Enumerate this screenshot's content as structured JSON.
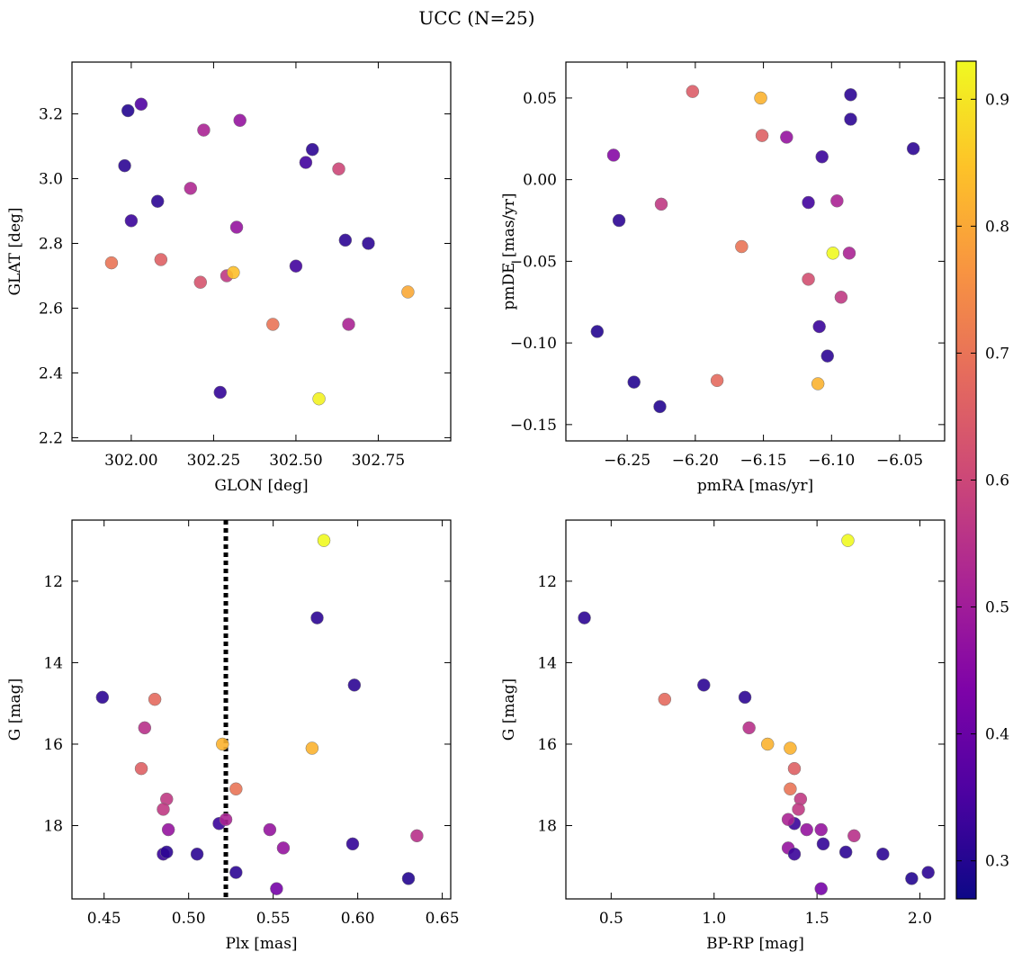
{
  "title": "UCC (N=25)",
  "colorbar": {
    "ticks": [
      0.3,
      0.4,
      0.5,
      0.6,
      0.7,
      0.8,
      0.9
    ],
    "range": [
      0.27,
      0.93
    ],
    "colormap": "plasma"
  },
  "chart_data": [
    {
      "type": "scatter",
      "name": "sky",
      "xlabel": "GLON [deg]",
      "ylabel": "GLAT [deg]",
      "xlim": [
        301.82,
        302.97
      ],
      "ylim": [
        2.19,
        3.36
      ],
      "xticks": [
        "302.00",
        "302.25",
        "302.50",
        "302.75"
      ],
      "yticks": [
        "2.2",
        "2.4",
        "2.6",
        "2.8",
        "3.0",
        "3.2"
      ],
      "points": [
        {
          "x": 301.99,
          "y": 3.21,
          "c": 0.3
        },
        {
          "x": 302.03,
          "y": 3.23,
          "c": 0.36
        },
        {
          "x": 301.98,
          "y": 3.04,
          "c": 0.31
        },
        {
          "x": 302.0,
          "y": 2.87,
          "c": 0.33
        },
        {
          "x": 302.08,
          "y": 2.93,
          "c": 0.31
        },
        {
          "x": 301.94,
          "y": 2.74,
          "c": 0.7
        },
        {
          "x": 302.09,
          "y": 2.75,
          "c": 0.66
        },
        {
          "x": 302.18,
          "y": 2.97,
          "c": 0.53
        },
        {
          "x": 302.22,
          "y": 3.15,
          "c": 0.52
        },
        {
          "x": 302.33,
          "y": 3.18,
          "c": 0.48
        },
        {
          "x": 302.32,
          "y": 2.85,
          "c": 0.48
        },
        {
          "x": 302.21,
          "y": 2.68,
          "c": 0.63
        },
        {
          "x": 302.29,
          "y": 2.7,
          "c": 0.57
        },
        {
          "x": 302.31,
          "y": 2.71,
          "c": 0.84
        },
        {
          "x": 302.43,
          "y": 2.55,
          "c": 0.7
        },
        {
          "x": 302.27,
          "y": 2.34,
          "c": 0.32
        },
        {
          "x": 302.5,
          "y": 2.73,
          "c": 0.34
        },
        {
          "x": 302.53,
          "y": 3.05,
          "c": 0.34
        },
        {
          "x": 302.55,
          "y": 3.09,
          "c": 0.31
        },
        {
          "x": 302.63,
          "y": 3.03,
          "c": 0.6
        },
        {
          "x": 302.65,
          "y": 2.81,
          "c": 0.31
        },
        {
          "x": 302.72,
          "y": 2.8,
          "c": 0.31
        },
        {
          "x": 302.66,
          "y": 2.55,
          "c": 0.52
        },
        {
          "x": 302.57,
          "y": 2.32,
          "c": 0.92
        },
        {
          "x": 302.84,
          "y": 2.65,
          "c": 0.8
        }
      ]
    },
    {
      "type": "scatter",
      "name": "proper-motion",
      "xlabel": "pmRA [mas/yr]",
      "ylabel": "pmDE [mas/yr]",
      "xlim": [
        -6.295,
        -6.017
      ],
      "ylim": [
        -0.16,
        0.072
      ],
      "xticks": [
        "−6.25",
        "−6.20",
        "−6.15",
        "−6.10",
        "−6.05"
      ],
      "yticks": [
        "−0.15",
        "−0.10",
        "−0.05",
        "0.00",
        "0.05"
      ],
      "points": [
        {
          "x": -6.202,
          "y": 0.054,
          "c": 0.65
        },
        {
          "x": -6.152,
          "y": 0.05,
          "c": 0.82
        },
        {
          "x": -6.086,
          "y": 0.052,
          "c": 0.31
        },
        {
          "x": -6.086,
          "y": 0.037,
          "c": 0.31
        },
        {
          "x": -6.151,
          "y": 0.027,
          "c": 0.66
        },
        {
          "x": -6.133,
          "y": 0.026,
          "c": 0.48
        },
        {
          "x": -6.26,
          "y": 0.015,
          "c": 0.45
        },
        {
          "x": -6.107,
          "y": 0.014,
          "c": 0.33
        },
        {
          "x": -6.04,
          "y": 0.019,
          "c": 0.31
        },
        {
          "x": -6.225,
          "y": -0.015,
          "c": 0.57
        },
        {
          "x": -6.117,
          "y": -0.014,
          "c": 0.34
        },
        {
          "x": -6.096,
          "y": -0.013,
          "c": 0.52
        },
        {
          "x": -6.256,
          "y": -0.025,
          "c": 0.31
        },
        {
          "x": -6.166,
          "y": -0.041,
          "c": 0.7
        },
        {
          "x": -6.099,
          "y": -0.045,
          "c": 0.93
        },
        {
          "x": -6.087,
          "y": -0.045,
          "c": 0.52
        },
        {
          "x": -6.117,
          "y": -0.061,
          "c": 0.62
        },
        {
          "x": -6.093,
          "y": -0.072,
          "c": 0.57
        },
        {
          "x": -6.272,
          "y": -0.093,
          "c": 0.3
        },
        {
          "x": -6.109,
          "y": -0.09,
          "c": 0.33
        },
        {
          "x": -6.103,
          "y": -0.108,
          "c": 0.31
        },
        {
          "x": -6.245,
          "y": -0.124,
          "c": 0.3
        },
        {
          "x": -6.184,
          "y": -0.123,
          "c": 0.68
        },
        {
          "x": -6.11,
          "y": -0.125,
          "c": 0.82
        },
        {
          "x": -6.226,
          "y": -0.139,
          "c": 0.3
        }
      ]
    },
    {
      "type": "scatter",
      "name": "parallax-magnitude",
      "xlabel": "Plx [mas]",
      "ylabel": "G [mag]",
      "xlim": [
        0.431,
        0.655
      ],
      "ylim": [
        19.8,
        10.5
      ],
      "xticks": [
        "0.45",
        "0.50",
        "0.55",
        "0.60",
        "0.65"
      ],
      "yticks": [
        "12",
        "14",
        "16",
        "18"
      ],
      "vline": {
        "x": 0.522,
        "style": "dotted",
        "color": "#000000"
      },
      "points": [
        {
          "x": 0.58,
          "y": 11.0,
          "c": 0.93
        },
        {
          "x": 0.576,
          "y": 12.9,
          "c": 0.31
        },
        {
          "x": 0.598,
          "y": 14.55,
          "c": 0.31
        },
        {
          "x": 0.449,
          "y": 14.85,
          "c": 0.31
        },
        {
          "x": 0.48,
          "y": 14.9,
          "c": 0.68
        },
        {
          "x": 0.474,
          "y": 15.6,
          "c": 0.55
        },
        {
          "x": 0.52,
          "y": 16.0,
          "c": 0.82
        },
        {
          "x": 0.573,
          "y": 16.1,
          "c": 0.82
        },
        {
          "x": 0.472,
          "y": 16.6,
          "c": 0.66
        },
        {
          "x": 0.528,
          "y": 17.1,
          "c": 0.7
        },
        {
          "x": 0.487,
          "y": 17.35,
          "c": 0.57
        },
        {
          "x": 0.485,
          "y": 17.6,
          "c": 0.57
        },
        {
          "x": 0.518,
          "y": 17.95,
          "c": 0.33
        },
        {
          "x": 0.522,
          "y": 17.85,
          "c": 0.52
        },
        {
          "x": 0.488,
          "y": 18.1,
          "c": 0.48
        },
        {
          "x": 0.548,
          "y": 18.1,
          "c": 0.48
        },
        {
          "x": 0.635,
          "y": 18.25,
          "c": 0.55
        },
        {
          "x": 0.597,
          "y": 18.45,
          "c": 0.32
        },
        {
          "x": 0.556,
          "y": 18.55,
          "c": 0.48
        },
        {
          "x": 0.485,
          "y": 18.7,
          "c": 0.33
        },
        {
          "x": 0.487,
          "y": 18.65,
          "c": 0.31
        },
        {
          "x": 0.505,
          "y": 18.7,
          "c": 0.31
        },
        {
          "x": 0.528,
          "y": 19.15,
          "c": 0.31
        },
        {
          "x": 0.63,
          "y": 19.3,
          "c": 0.3
        },
        {
          "x": 0.552,
          "y": 19.55,
          "c": 0.42
        }
      ]
    },
    {
      "type": "scatter",
      "name": "color-magnitude",
      "xlabel": "BP-RP [mag]",
      "ylabel": "G [mag]",
      "xlim": [
        0.28,
        2.12
      ],
      "ylim": [
        19.8,
        10.5
      ],
      "xticks": [
        "0.5",
        "1.0",
        "1.5",
        "2.0"
      ],
      "yticks": [
        "12",
        "14",
        "16",
        "18"
      ],
      "points": [
        {
          "x": 1.65,
          "y": 11.0,
          "c": 0.93
        },
        {
          "x": 0.37,
          "y": 12.9,
          "c": 0.31
        },
        {
          "x": 0.95,
          "y": 14.55,
          "c": 0.31
        },
        {
          "x": 0.76,
          "y": 14.9,
          "c": 0.68
        },
        {
          "x": 1.15,
          "y": 14.85,
          "c": 0.31
        },
        {
          "x": 1.17,
          "y": 15.6,
          "c": 0.55
        },
        {
          "x": 1.26,
          "y": 16.0,
          "c": 0.82
        },
        {
          "x": 1.37,
          "y": 16.1,
          "c": 0.82
        },
        {
          "x": 1.39,
          "y": 16.6,
          "c": 0.66
        },
        {
          "x": 1.37,
          "y": 17.1,
          "c": 0.7
        },
        {
          "x": 1.42,
          "y": 17.35,
          "c": 0.57
        },
        {
          "x": 1.41,
          "y": 17.6,
          "c": 0.57
        },
        {
          "x": 1.39,
          "y": 17.95,
          "c": 0.33
        },
        {
          "x": 1.36,
          "y": 17.85,
          "c": 0.52
        },
        {
          "x": 1.45,
          "y": 18.1,
          "c": 0.48
        },
        {
          "x": 1.52,
          "y": 18.1,
          "c": 0.48
        },
        {
          "x": 1.68,
          "y": 18.25,
          "c": 0.55
        },
        {
          "x": 1.53,
          "y": 18.45,
          "c": 0.32
        },
        {
          "x": 1.36,
          "y": 18.55,
          "c": 0.48
        },
        {
          "x": 1.39,
          "y": 18.7,
          "c": 0.33
        },
        {
          "x": 1.64,
          "y": 18.65,
          "c": 0.31
        },
        {
          "x": 1.82,
          "y": 18.7,
          "c": 0.31
        },
        {
          "x": 2.04,
          "y": 19.15,
          "c": 0.31
        },
        {
          "x": 1.96,
          "y": 19.3,
          "c": 0.3
        },
        {
          "x": 1.52,
          "y": 19.55,
          "c": 0.42
        }
      ]
    }
  ]
}
